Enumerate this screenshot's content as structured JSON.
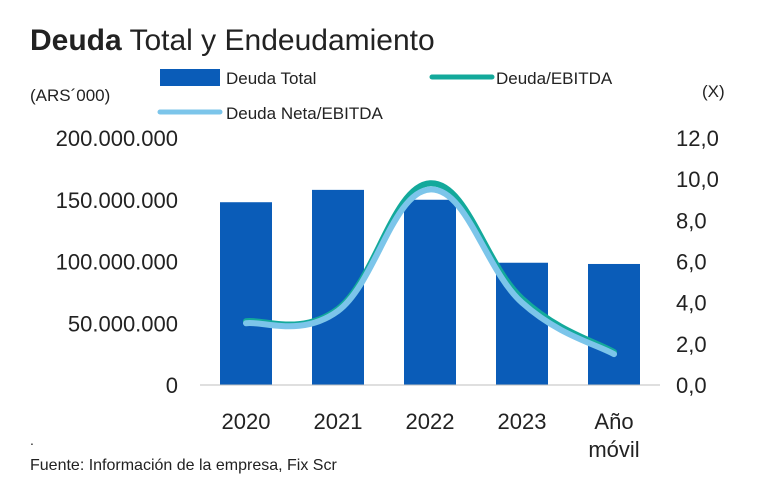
{
  "chart_data": {
    "type": "bar+line",
    "title_bold": "Deuda",
    "title_rest": " Total y Endeudamiento",
    "left_unit": "(ARS´000)",
    "right_unit": "(X)",
    "categories": [
      "2020",
      "2021",
      "2022",
      "2023",
      "Año|móvil"
    ],
    "left_ticks": [
      "0",
      "50.000.000",
      "100.000.000",
      "150.000.000",
      "200.000.000"
    ],
    "right_ticks": [
      "0,0",
      "2,0",
      "4,0",
      "6,0",
      "8,0",
      "10,0",
      "12,0"
    ],
    "ylim_left": [
      0,
      200000000
    ],
    "ylim_right": [
      0,
      12
    ],
    "bars": {
      "name": "Deuda Total",
      "color": "#0a5cb8",
      "values": [
        148000000,
        158000000,
        150000000,
        99000000,
        98000000
      ]
    },
    "series": [
      {
        "name": "Deuda/EBITDA",
        "color": "#13a99b",
        "values": [
          3.1,
          3.7,
          9.8,
          4.2,
          1.6
        ]
      },
      {
        "name": "Deuda Neta/EBITDA",
        "color": "#7cc5ea",
        "values": [
          3.0,
          3.6,
          9.5,
          4.0,
          1.5
        ]
      }
    ]
  },
  "source_text": "Fuente: Información de la empresa, Fix Scr",
  "dot_text": "."
}
